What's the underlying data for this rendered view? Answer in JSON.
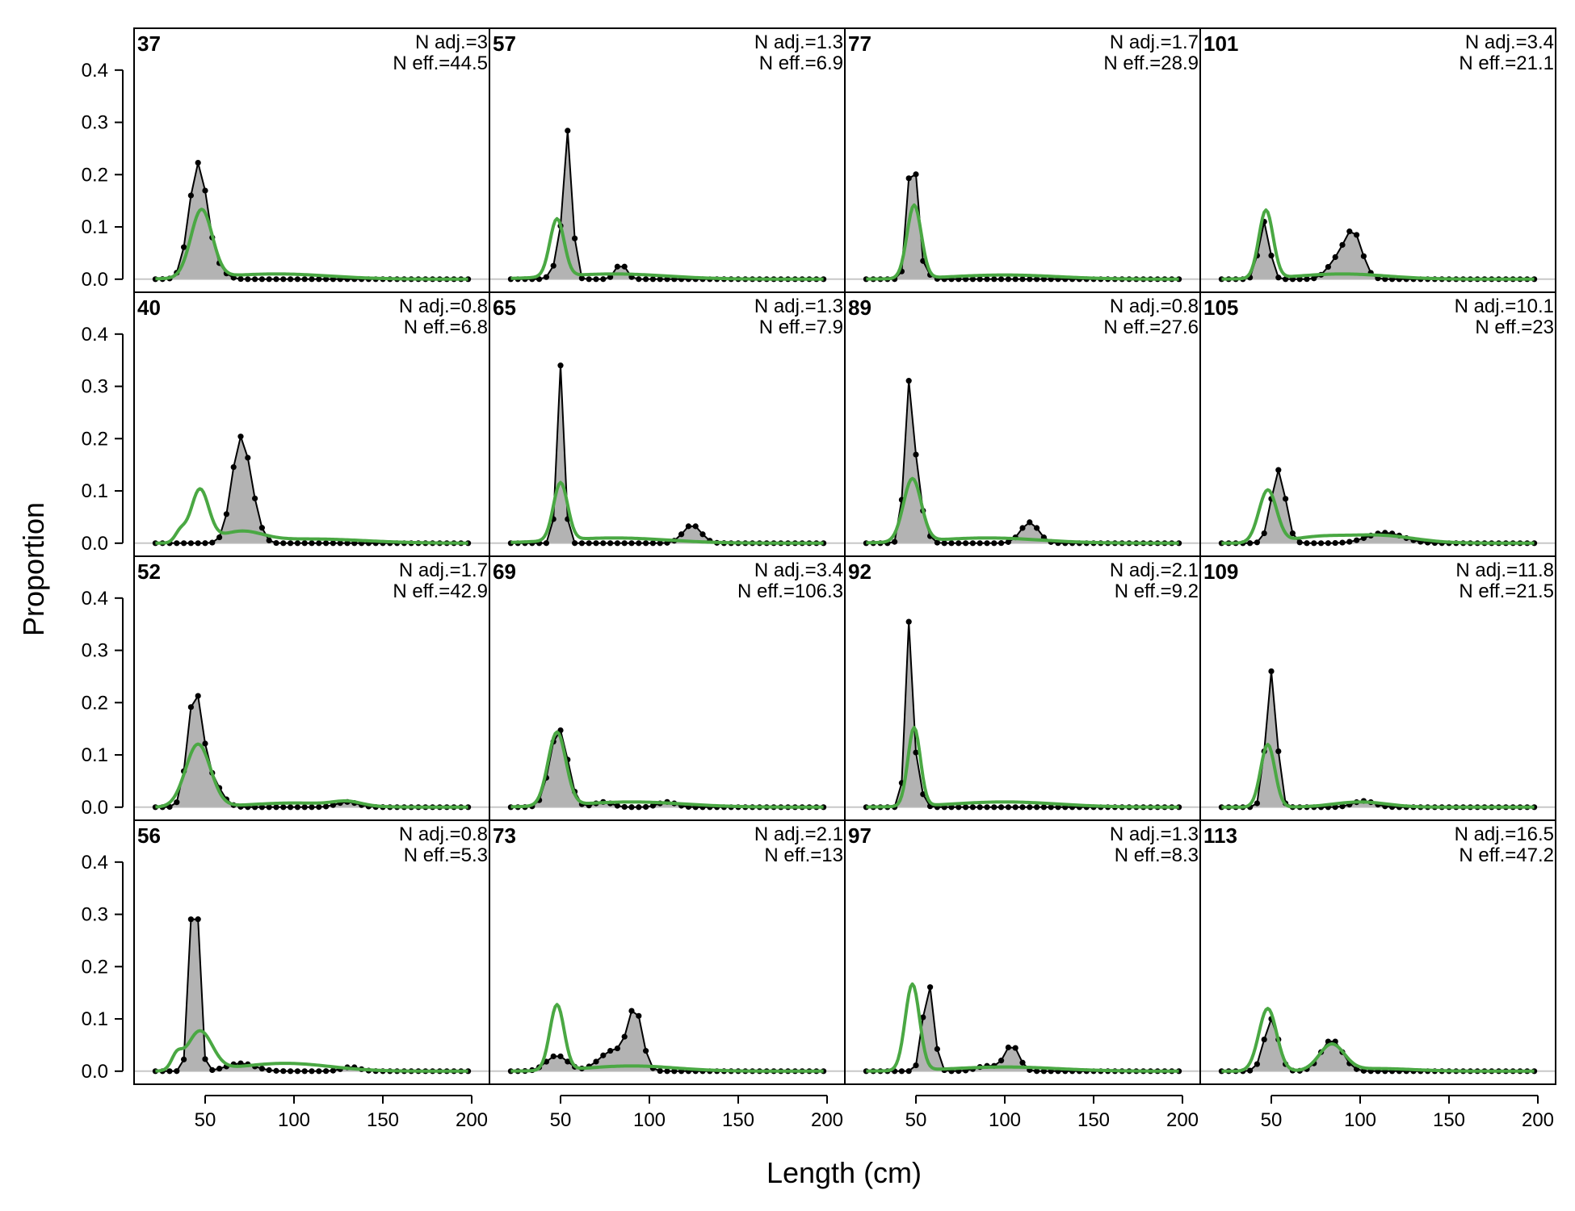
{
  "chart_data": {
    "type": "line",
    "xlabel": "Length (cm)",
    "ylabel": "Proportion",
    "xlim": [
      10,
      210
    ],
    "ylim": [
      -0.025,
      0.48
    ],
    "xticks": [
      50,
      100,
      150,
      200
    ],
    "yticks": [
      0.0,
      0.1,
      0.2,
      0.3,
      0.4
    ],
    "xbin": {
      "start": 22,
      "end": 198,
      "step": 4
    },
    "colors": {
      "observed_fill": "#b3b3b3",
      "observed_line": "#000000",
      "expected_line": "#4aa843",
      "baseline": "#c8c8c8",
      "frame": "#000000"
    },
    "panels": [
      {
        "label": "37",
        "n_adj": "N adj.=3",
        "n_eff": "N eff.=44.5",
        "obs_peaks": [
          [
            46,
            0.22,
            5
          ],
          [
            56,
            0.02,
            5
          ]
        ],
        "exp_peaks": [
          [
            48,
            0.13,
            6
          ],
          [
            90,
            0.01,
            30
          ]
        ]
      },
      {
        "label": "40",
        "n_adj": "N adj.=0.8",
        "n_eff": "N eff.=6.8",
        "obs_peaks": [
          [
            70,
            0.2,
            5
          ],
          [
            78,
            0.03,
            4
          ]
        ],
        "exp_peaks": [
          [
            47,
            0.1,
            5
          ],
          [
            36,
            0.02,
            3
          ],
          [
            70,
            0.02,
            12
          ],
          [
            110,
            0.008,
            30
          ]
        ]
      },
      {
        "label": "52",
        "n_adj": "N adj.=1.7",
        "n_eff": "N eff.=42.9",
        "obs_peaks": [
          [
            44,
            0.2,
            4
          ],
          [
            52,
            0.06,
            6
          ],
          [
            130,
            0.01,
            6
          ]
        ],
        "exp_peaks": [
          [
            46,
            0.12,
            7
          ],
          [
            100,
            0.008,
            25
          ],
          [
            130,
            0.008,
            8
          ]
        ]
      },
      {
        "label": "56",
        "n_adj": "N adj.=0.8",
        "n_eff": "N eff.=5.3",
        "obs_peaks": [
          [
            44,
            0.4,
            2.5
          ],
          [
            70,
            0.015,
            8
          ],
          [
            132,
            0.008,
            5
          ]
        ],
        "exp_peaks": [
          [
            47,
            0.075,
            7
          ],
          [
            34,
            0.025,
            3
          ],
          [
            95,
            0.015,
            25
          ]
        ]
      },
      {
        "label": "57",
        "n_adj": "N adj.=1.3",
        "n_eff": "N eff.=6.9",
        "obs_peaks": [
          [
            54,
            0.28,
            2.5
          ],
          [
            48,
            0.03,
            3
          ],
          [
            84,
            0.03,
            3
          ]
        ],
        "exp_peaks": [
          [
            48,
            0.11,
            4
          ],
          [
            80,
            0.01,
            30
          ]
        ]
      },
      {
        "label": "65",
        "n_adj": "N adj.=1.3",
        "n_eff": "N eff.=7.9",
        "obs_peaks": [
          [
            50,
            0.34,
            2
          ],
          [
            124,
            0.035,
            5
          ]
        ],
        "exp_peaks": [
          [
            50,
            0.11,
            4
          ],
          [
            80,
            0.01,
            30
          ]
        ]
      },
      {
        "label": "69",
        "n_adj": "N adj.=3.4",
        "n_eff": "N eff.=106.3",
        "obs_peaks": [
          [
            49,
            0.15,
            5
          ],
          [
            74,
            0.01,
            5
          ],
          [
            110,
            0.01,
            5
          ]
        ],
        "exp_peaks": [
          [
            48,
            0.14,
            5
          ],
          [
            90,
            0.01,
            30
          ]
        ]
      },
      {
        "label": "73",
        "n_adj": "N adj.=2.1",
        "n_eff": "N eff.=13",
        "obs_peaks": [
          [
            92,
            0.11,
            4
          ],
          [
            80,
            0.04,
            8
          ],
          [
            48,
            0.03,
            6
          ]
        ],
        "exp_peaks": [
          [
            48,
            0.125,
            4
          ],
          [
            90,
            0.01,
            25
          ]
        ]
      },
      {
        "label": "77",
        "n_adj": "N adj.=1.7",
        "n_eff": "N eff.=28.9",
        "obs_peaks": [
          [
            48,
            0.265,
            2.5
          ],
          [
            54,
            0.02,
            3
          ]
        ],
        "exp_peaks": [
          [
            49,
            0.14,
            4
          ],
          [
            100,
            0.008,
            30
          ]
        ]
      },
      {
        "label": "89",
        "n_adj": "N adj.=0.8",
        "n_eff": "N eff.=27.6",
        "obs_peaks": [
          [
            46,
            0.25,
            2.5
          ],
          [
            50,
            0.1,
            4
          ],
          [
            114,
            0.04,
            5
          ]
        ],
        "exp_peaks": [
          [
            48,
            0.12,
            5
          ],
          [
            90,
            0.01,
            30
          ]
        ]
      },
      {
        "label": "92",
        "n_adj": "N adj.=2.1",
        "n_eff": "N eff.=9.2",
        "obs_peaks": [
          [
            46,
            0.33,
            2
          ],
          [
            50,
            0.06,
            3
          ]
        ],
        "exp_peaks": [
          [
            49,
            0.15,
            3.5
          ],
          [
            100,
            0.01,
            30
          ]
        ]
      },
      {
        "label": "97",
        "n_adj": "N adj.=1.3",
        "n_eff": "N eff.=8.3",
        "obs_peaks": [
          [
            57,
            0.17,
            3
          ],
          [
            104,
            0.05,
            4
          ],
          [
            90,
            0.01,
            6
          ]
        ],
        "exp_peaks": [
          [
            48,
            0.165,
            4
          ],
          [
            100,
            0.008,
            30
          ]
        ]
      },
      {
        "label": "101",
        "n_adj": "N adj.=3.4",
        "n_eff": "N eff.=21.1",
        "obs_peaks": [
          [
            46,
            0.11,
            3
          ],
          [
            96,
            0.09,
            5
          ],
          [
            86,
            0.03,
            5
          ]
        ],
        "exp_peaks": [
          [
            47,
            0.13,
            4
          ],
          [
            90,
            0.01,
            25
          ]
        ]
      },
      {
        "label": "105",
        "n_adj": "N adj.=10.1",
        "n_eff": "N eff.=23",
        "obs_peaks": [
          [
            54,
            0.14,
            4
          ],
          [
            114,
            0.02,
            10
          ]
        ],
        "exp_peaks": [
          [
            48,
            0.1,
            5
          ],
          [
            110,
            0.015,
            20
          ],
          [
            75,
            0.01,
            15
          ]
        ]
      },
      {
        "label": "109",
        "n_adj": "N adj.=11.8",
        "n_eff": "N eff.=21.5",
        "obs_peaks": [
          [
            50,
            0.26,
            3
          ],
          [
            102,
            0.012,
            6
          ]
        ],
        "exp_peaks": [
          [
            48,
            0.12,
            4
          ],
          [
            100,
            0.01,
            15
          ]
        ]
      },
      {
        "label": "113",
        "n_adj": "N adj.=16.5",
        "n_eff": "N eff.=47.2",
        "obs_peaks": [
          [
            50,
            0.1,
            4
          ],
          [
            84,
            0.06,
            6
          ]
        ],
        "exp_peaks": [
          [
            48,
            0.12,
            5
          ],
          [
            84,
            0.05,
            7
          ],
          [
            110,
            0.005,
            20
          ]
        ]
      }
    ]
  }
}
